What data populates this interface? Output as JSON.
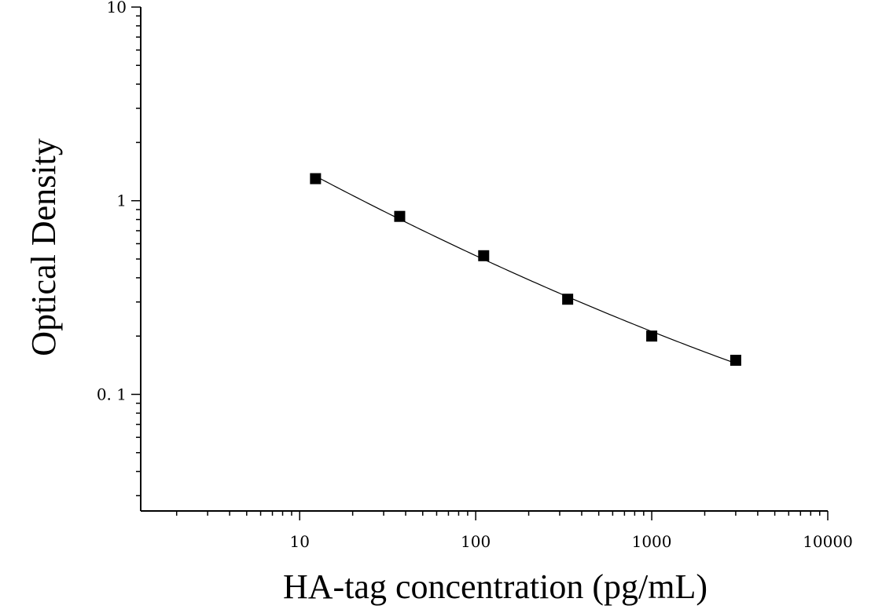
{
  "chart_data": {
    "type": "scatter",
    "title": "",
    "xlabel": "HA-tag concentration (pg/mL)",
    "ylabel": "Optical Density",
    "x_scale": "log",
    "y_scale": "log",
    "xlim": [
      1.25,
      10000
    ],
    "ylim": [
      0.025,
      10
    ],
    "x_ticks": [
      {
        "value": 10,
        "label": "10"
      },
      {
        "value": 100,
        "label": "100"
      },
      {
        "value": 1000,
        "label": "1000"
      },
      {
        "value": 10000,
        "label": "10000"
      }
    ],
    "y_ticks": [
      {
        "value": 0.1,
        "label": "0. 1"
      },
      {
        "value": 1,
        "label": "1"
      },
      {
        "value": 10,
        "label": "10"
      }
    ],
    "grid": false,
    "legend": "none",
    "marker_color": "#000000",
    "marker": "square",
    "fit_line": "smooth curve through points",
    "points": [
      {
        "x": 12.3,
        "y": 1.3
      },
      {
        "x": 37,
        "y": 0.83
      },
      {
        "x": 111,
        "y": 0.52
      },
      {
        "x": 333,
        "y": 0.31
      },
      {
        "x": 1000,
        "y": 0.2
      },
      {
        "x": 3000,
        "y": 0.15
      }
    ]
  }
}
